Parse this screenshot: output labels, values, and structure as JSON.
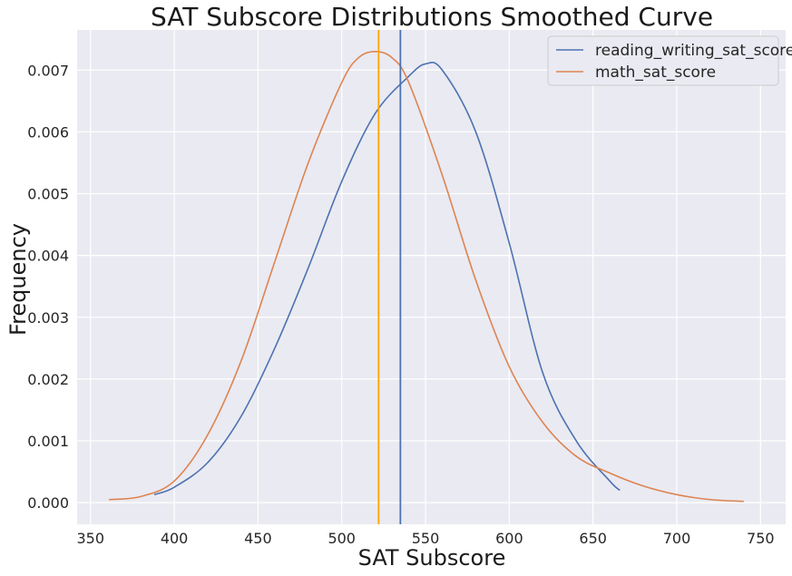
{
  "chart_data": {
    "type": "line",
    "title": "SAT Subscore Distributions Smoothed Curve",
    "xlabel": "SAT Subscore",
    "ylabel": "Frequency",
    "xlim": [
      342,
      765
    ],
    "ylim": [
      -0.00035,
      0.00765
    ],
    "xticks": [
      350,
      400,
      450,
      500,
      550,
      600,
      650,
      700,
      750
    ],
    "yticks": [
      0.0,
      0.001,
      0.002,
      0.003,
      0.004,
      0.005,
      0.006,
      0.007
    ],
    "ytick_labels": [
      "0.000",
      "0.001",
      "0.002",
      "0.003",
      "0.004",
      "0.005",
      "0.006",
      "0.007"
    ],
    "grid": true,
    "legend_position": "top-right",
    "series": [
      {
        "name": "reading_writing_sat_score",
        "color": "#4c72b0",
        "x": [
          388,
          400,
          420,
          440,
          460,
          480,
          500,
          520,
          540,
          550,
          560,
          580,
          600,
          620,
          640,
          660,
          666
        ],
        "y": [
          0.00013,
          0.00025,
          0.00065,
          0.0014,
          0.0025,
          0.0038,
          0.0052,
          0.0063,
          0.0069,
          0.0071,
          0.007,
          0.006,
          0.0042,
          0.0021,
          0.001,
          0.00035,
          0.0002
        ]
      },
      {
        "name": "math_sat_score",
        "color": "#dd8452",
        "x": [
          361,
          380,
          400,
          420,
          440,
          460,
          480,
          500,
          510,
          520,
          530,
          540,
          560,
          580,
          600,
          620,
          640,
          660,
          680,
          700,
          720,
          740
        ],
        "y": [
          5e-05,
          0.0001,
          0.00035,
          0.0011,
          0.0023,
          0.0039,
          0.0055,
          0.0068,
          0.0072,
          0.0073,
          0.0072,
          0.0068,
          0.0053,
          0.0036,
          0.0022,
          0.0013,
          0.00075,
          0.00048,
          0.00027,
          0.00013,
          5e-05,
          2e-05
        ]
      }
    ],
    "vertical_lines": [
      {
        "x": 522,
        "color": "#ffa500"
      },
      {
        "x": 535,
        "color": "#4c72b0"
      }
    ]
  }
}
